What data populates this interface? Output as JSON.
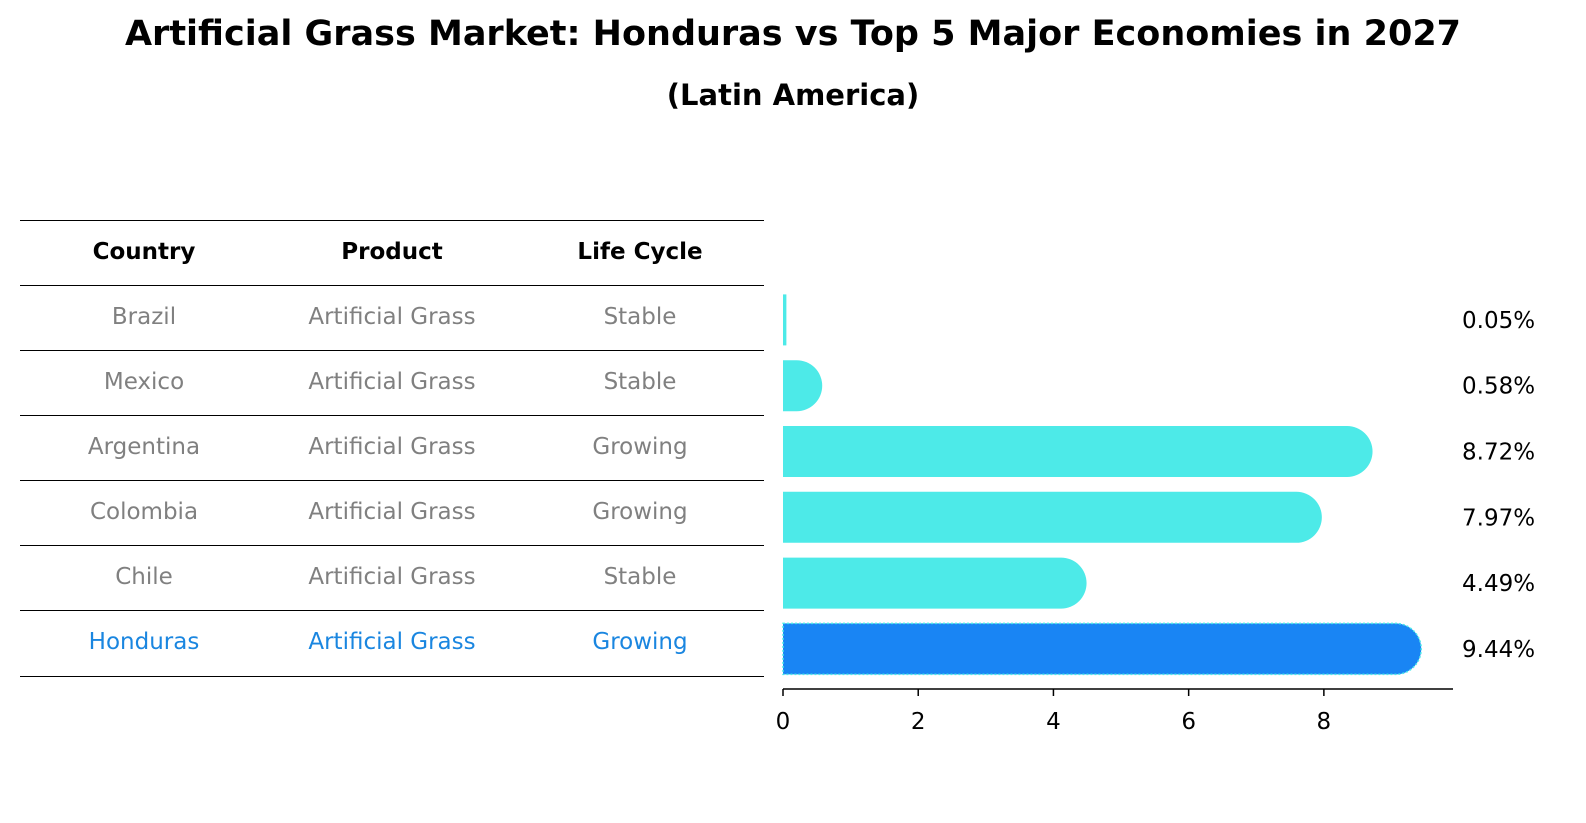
{
  "title": "Artificial Grass Market: Honduras vs Top 5 Major Economies in 2027",
  "subtitle": "(Latin America)",
  "table": {
    "headers": [
      "Country",
      "Product",
      "Life Cycle"
    ],
    "rows": [
      [
        "Brazil",
        "Artificial Grass",
        "Stable"
      ],
      [
        "Mexico",
        "Artificial Grass",
        "Stable"
      ],
      [
        "Argentina",
        "Artificial Grass",
        "Growing"
      ],
      [
        "Colombia",
        "Artificial Grass",
        "Growing"
      ],
      [
        "Chile",
        "Artificial Grass",
        "Stable"
      ],
      [
        "Honduras",
        "Artificial Grass",
        "Growing"
      ]
    ],
    "highlight_row": 5,
    "text_color": "#808080",
    "highlight_color": "#1a86e0"
  },
  "chart_data": {
    "type": "bar",
    "orientation": "horizontal",
    "categories": [
      "Brazil",
      "Mexico",
      "Argentina",
      "Colombia",
      "Chile",
      "Honduras"
    ],
    "values": [
      0.05,
      0.58,
      8.72,
      7.97,
      4.49,
      9.44
    ],
    "value_labels": [
      "0.05%",
      "0.58%",
      "8.72%",
      "7.97%",
      "4.49%",
      "9.44%"
    ],
    "xticks": [
      "0",
      "2",
      "4",
      "6",
      "8"
    ],
    "xlim": [
      0,
      9.91
    ],
    "grid": false,
    "colors": {
      "default": "#4deae8",
      "highlight": "#1985f4"
    },
    "highlight_index": 5
  }
}
